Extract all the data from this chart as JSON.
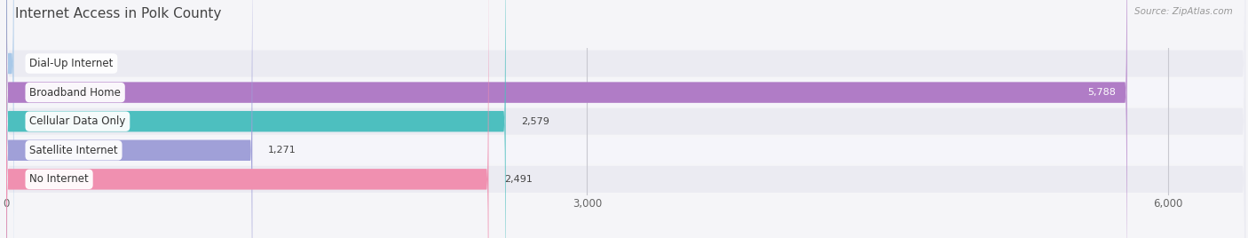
{
  "title": "Internet Access in Polk County",
  "source": "Source: ZipAtlas.com",
  "categories": [
    "Dial-Up Internet",
    "Broadband Home",
    "Cellular Data Only",
    "Satellite Internet",
    "No Internet"
  ],
  "values": [
    39,
    5788,
    2579,
    1271,
    2491
  ],
  "bar_colors": [
    "#a8c8e8",
    "#b07cc6",
    "#4dbfbf",
    "#a0a0d8",
    "#f090b0"
  ],
  "xlim": [
    0,
    6400
  ],
  "xticks": [
    0,
    3000,
    6000
  ],
  "xticklabels": [
    "0",
    "3,000",
    "6,000"
  ],
  "bar_height": 0.72,
  "background_color": "#f5f5f8",
  "title_fontsize": 11,
  "label_fontsize": 8.5,
  "value_fontsize": 8,
  "source_fontsize": 7.5
}
